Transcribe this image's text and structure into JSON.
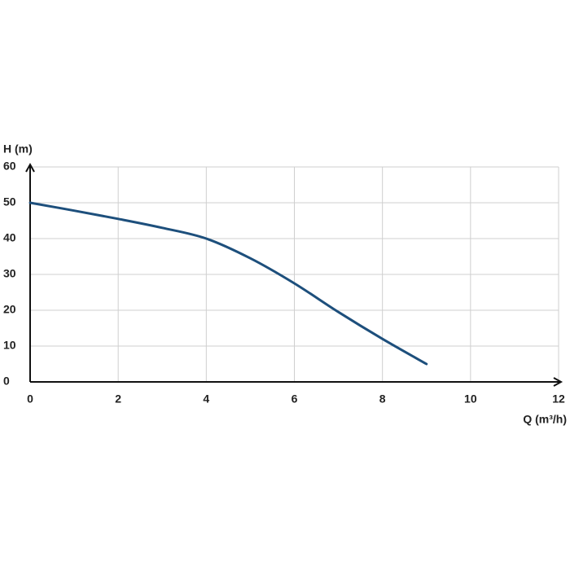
{
  "chart_data": {
    "type": "line",
    "y_label": "H (m)",
    "x_label": "Q (m³/h)",
    "x": [
      0,
      1,
      2,
      3,
      4,
      5,
      6,
      7,
      8,
      9
    ],
    "series": [
      {
        "name": "H",
        "color": "#1d4f7c",
        "values": [
          50,
          47.8,
          45.5,
          43,
          40,
          34.5,
          27.5,
          19.5,
          12,
          5
        ]
      }
    ],
    "xlim": [
      0,
      12
    ],
    "xticks": [
      0,
      2,
      4,
      6,
      8,
      10,
      12
    ],
    "ylim": [
      0,
      60
    ],
    "yticks": [
      0,
      10,
      20,
      30,
      40,
      50,
      60
    ],
    "grid": true
  }
}
